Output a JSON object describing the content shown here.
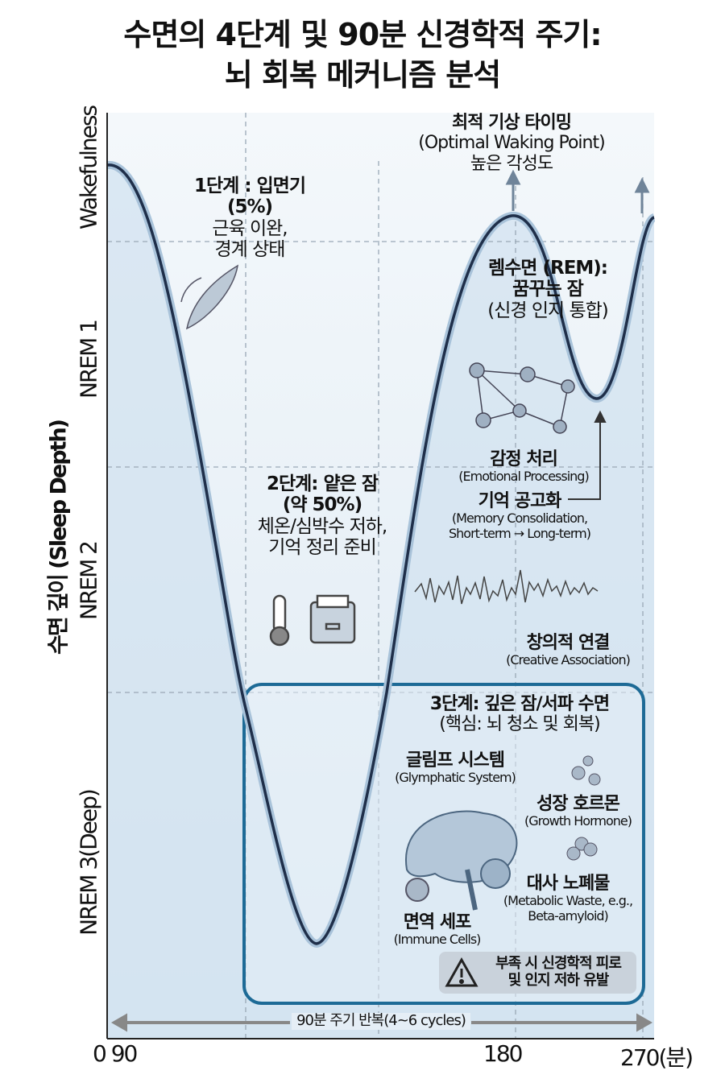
{
  "title": {
    "line1": "수면의 4단계 및 90분 신경학적 주기:",
    "line2": "뇌 회복 메커니즘 분석"
  },
  "y_axis": {
    "label": "수면 깊이 (Sleep Depth)",
    "levels": [
      "Wakefulness",
      "NREM 1",
      "NREM 2",
      "NREM 3(Deep)"
    ]
  },
  "x_axis": {
    "ticks": [
      "0 90",
      "180",
      "270(분)"
    ],
    "cycle_label": "90분 주기 반복(4~6 cycles)"
  },
  "stage1": {
    "title": "1단계 : 입면기",
    "pct": "(5%)",
    "desc1": "근육 이완,",
    "desc2": "경계 상태"
  },
  "stage2": {
    "title": "2단계: 얕은 잠",
    "pct": "(약 50%)",
    "desc1": "체온/심박수 저하,",
    "desc2": "기억 정리 준비"
  },
  "stage3": {
    "title": "3단계: 깊은 잠/서파 수면",
    "sub": "(핵심: 뇌 청소 및 회복)",
    "glymph": "글림프 시스템",
    "glymph_en": "(Glymphatic System)",
    "growth": "성장 호르몬",
    "growth_en": "(Growth Hormone)",
    "waste": "대사 노폐물",
    "waste_en1": "(Metabolic Waste, e.g.,",
    "waste_en2": "Beta-amyloid)",
    "immune": "면역 세포",
    "immune_en": "(Immune Cells)",
    "warning1": "부족 시 신경학적 피로",
    "warning2": "및 인지 저하 유발"
  },
  "rem": {
    "title": "렘수면 (REM):",
    "sub": "꿈꾸는 잠",
    "desc": "(신경 인지 통합)",
    "emotion": "감정 처리",
    "emotion_en": "(Emotional Processing)",
    "memory": "기억 공고화",
    "memory_en1": "(Memory Consolidation,",
    "memory_en2": "Short-term → Long-term)",
    "creative": "창의적 연결",
    "creative_en": "(Creative Association)"
  },
  "waking": {
    "title": "최적 기상 타이밍",
    "en": "(Optimal Waking Point)",
    "desc": "높은 각성도"
  },
  "colors": {
    "curve": "#1f2f4a",
    "box": "#1d6a96",
    "fill": "#dbe8f3"
  }
}
